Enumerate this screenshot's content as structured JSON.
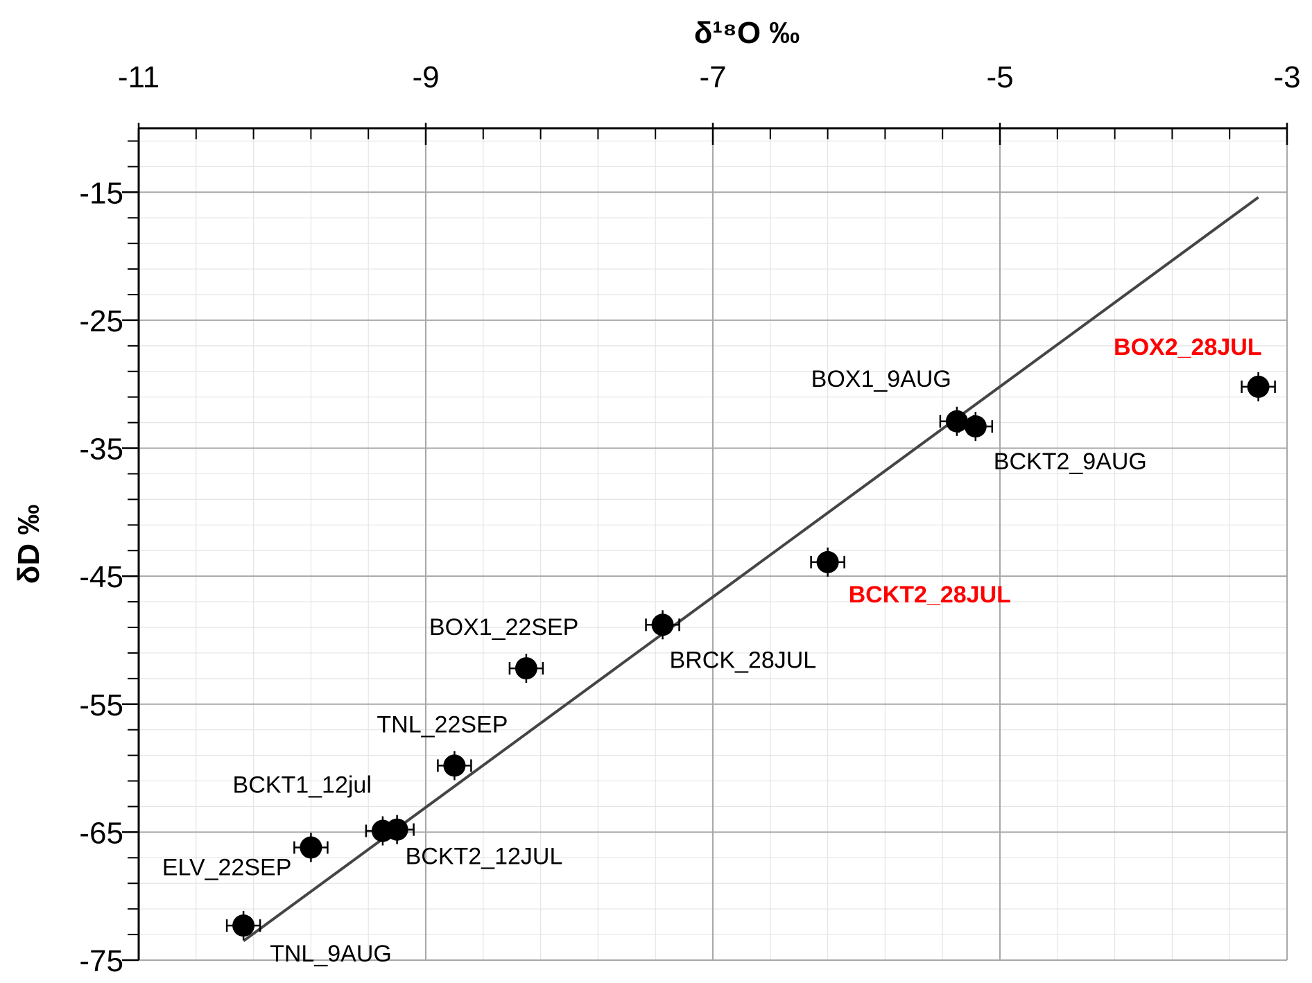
{
  "chart_data": {
    "type": "scatter",
    "title": "",
    "xlabel": "δ¹⁸O ‰",
    "ylabel": "δD ‰",
    "xlim": [
      -11,
      -3
    ],
    "ylim": [
      -75,
      -10
    ],
    "x_ticks": [
      -11,
      -9,
      -7,
      -5,
      -3
    ],
    "y_ticks": [
      -15,
      -25,
      -35,
      -45,
      -55,
      -65,
      -75
    ],
    "x_tick_labels": [
      "-11",
      "-9",
      "-7",
      "-5",
      "-3"
    ],
    "y_tick_labels": [
      "-15",
      "-25",
      "-35",
      "-45",
      "-55",
      "-65",
      "-75"
    ],
    "x_axis_position": "top",
    "grid": true,
    "highlight_color": "#ff0000",
    "points": [
      {
        "label": "TNL_9AUG",
        "x": -10.27,
        "y": -72.3,
        "highlight": false
      },
      {
        "label": "ELV_22SEP",
        "x": -9.8,
        "y": -66.2,
        "highlight": false
      },
      {
        "label": "BCKT1_12jul",
        "x": -9.3,
        "y": -64.9,
        "highlight": false
      },
      {
        "label": "BCKT2_12JUL",
        "x": -9.2,
        "y": -64.8,
        "highlight": false
      },
      {
        "label": "TNL_22SEP",
        "x": -8.8,
        "y": -59.8,
        "highlight": false
      },
      {
        "label": "BOX1_22SEP",
        "x": -8.3,
        "y": -52.2,
        "highlight": false
      },
      {
        "label": "BRCK_28JUL",
        "x": -7.35,
        "y": -48.8,
        "highlight": false
      },
      {
        "label": "BCKT2_28JUL",
        "x": -6.2,
        "y": -43.9,
        "highlight": true
      },
      {
        "label": "BOX1_9AUG",
        "x": -5.3,
        "y": -32.9,
        "highlight": false
      },
      {
        "label": "BCKT2_9AUG",
        "x": -5.17,
        "y": -33.3,
        "highlight": false
      },
      {
        "label": "BOX2_28JUL",
        "x": -3.2,
        "y": -30.2,
        "highlight": true
      }
    ],
    "regression_line": {
      "x": [
        -10.27,
        -3.2
      ],
      "y": [
        -73.5,
        -15.4
      ]
    }
  }
}
